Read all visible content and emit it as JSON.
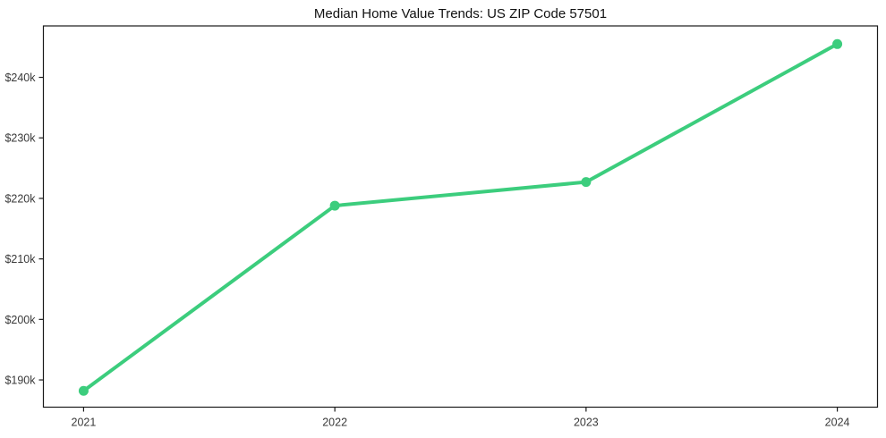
{
  "title": "Median Home Value Trends: US ZIP Code 57501",
  "chart_data": {
    "type": "line",
    "title": "Median Home Value Trends: US ZIP Code 57501",
    "x": [
      2021,
      2022,
      2023,
      2024
    ],
    "categories": [
      "2021",
      "2022",
      "2023",
      "2024"
    ],
    "series": [
      {
        "name": "Median Home Value",
        "values": [
          188200,
          218800,
          222700,
          245500
        ]
      }
    ],
    "xlabel": "",
    "ylabel": "",
    "xlim": [
      2020.84,
      2024.16
    ],
    "ylim": [
      185500,
      248500
    ],
    "yticks": [
      190000,
      200000,
      210000,
      220000,
      230000,
      240000
    ],
    "ytick_labels": [
      "$190k",
      "$200k",
      "$210k",
      "$220k",
      "$230k",
      "$240k"
    ],
    "xticks": [
      2021,
      2022,
      2023,
      2024
    ],
    "xtick_labels": [
      "2021",
      "2022",
      "2023",
      "2024"
    ],
    "grid": false,
    "legend": null,
    "line_width": 4,
    "marker": "circle",
    "marker_radius": 5.5,
    "colors": {
      "line": "#3ccd7d",
      "marker": "#3ccd7d",
      "spine": "#1a1a1a",
      "tick_label": "#3a3a3a",
      "title": "#111111",
      "background": "#ffffff"
    }
  }
}
